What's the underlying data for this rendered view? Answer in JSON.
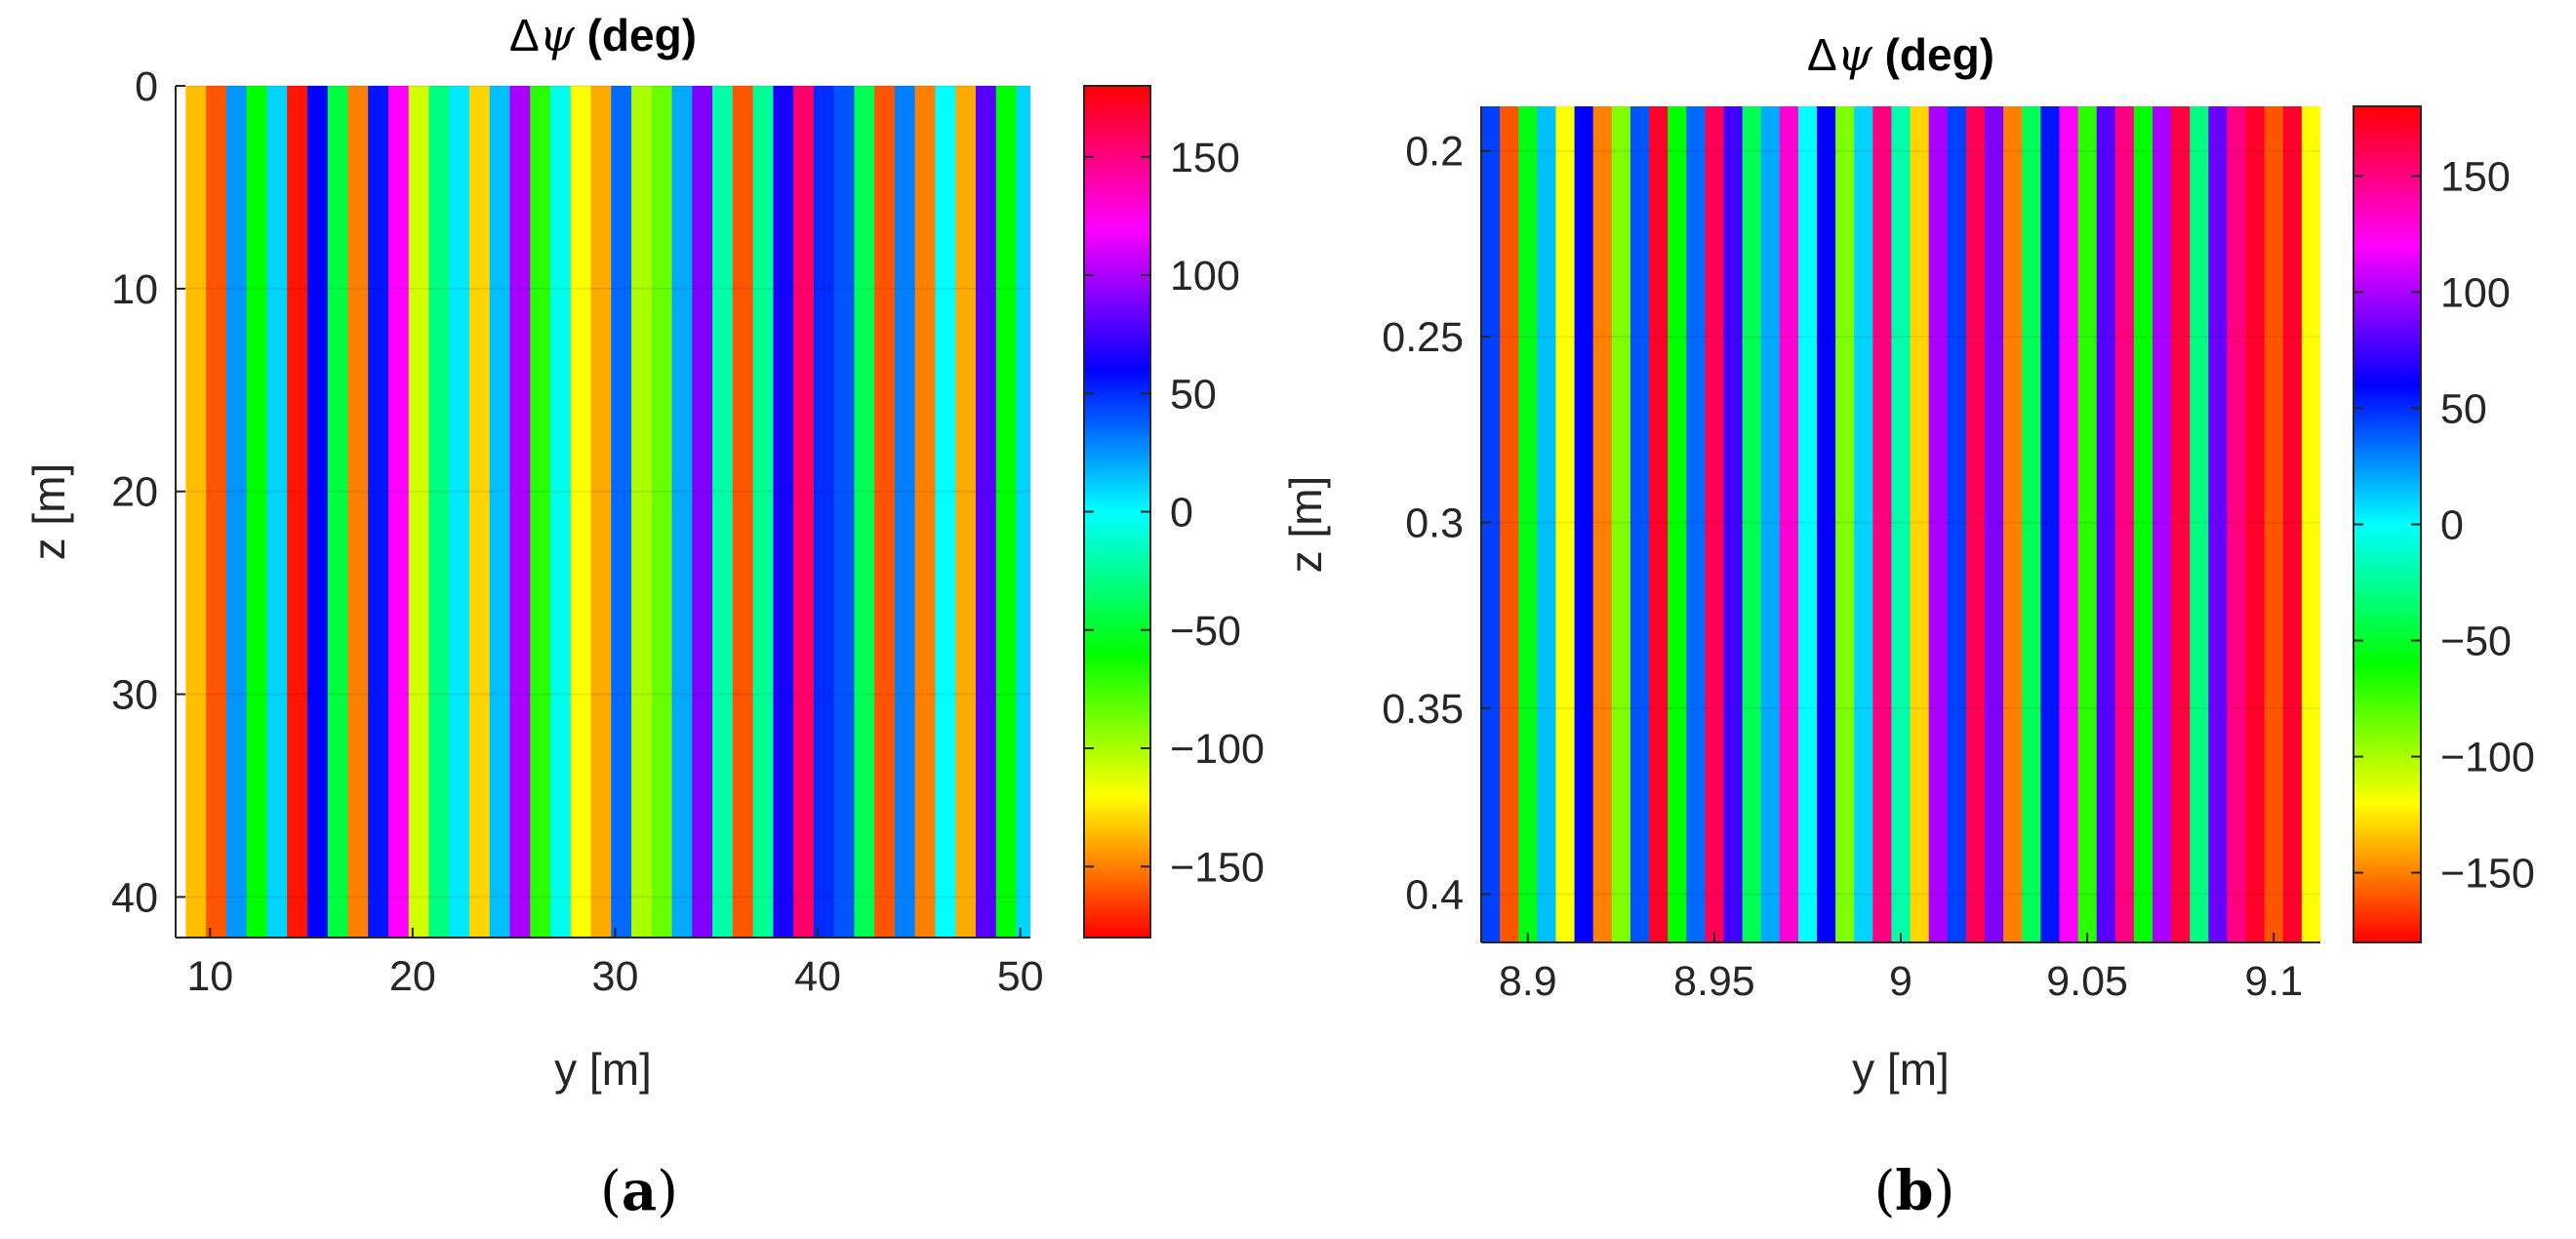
{
  "chart_data": [
    {
      "type": "heatmap",
      "panel_label": "(a)",
      "title": "Δψ (deg)",
      "title_symbol": "Δ",
      "title_var": "ψ",
      "title_unit": " (deg)",
      "xlabel": "y [m]",
      "ylabel": "z [m]",
      "xlim": [
        8.3,
        50.5
      ],
      "ylim": [
        0,
        42
      ],
      "y_reversed": true,
      "xticks": [
        10,
        20,
        30,
        40,
        50
      ],
      "yticks": [
        0,
        10,
        20,
        30,
        40
      ],
      "colorbar": {
        "clim": [
          -180,
          180
        ],
        "ticks": [
          -150,
          -100,
          -50,
          0,
          50,
          100,
          150
        ],
        "tick_labels": [
          "−150",
          "−100",
          "−50",
          "0",
          "50",
          "100",
          "150"
        ],
        "colormap": "hsv-like"
      },
      "column_width": 1.0,
      "columns_start": 8.8,
      "column_values": [
        -135,
        -160,
        25,
        -60,
        10,
        -175,
        60,
        -45,
        -150,
        55,
        120,
        -110,
        -30,
        5,
        -130,
        15,
        100,
        -70,
        -5,
        -120,
        -140,
        35,
        -100,
        -85,
        20,
        90,
        -20,
        -160,
        -25,
        65,
        155,
        50,
        40,
        -40,
        -160,
        30,
        -150,
        0,
        -140,
        80,
        -60,
        10
      ]
    },
    {
      "type": "heatmap",
      "panel_label": "(b)",
      "title": "Δψ (deg)",
      "title_symbol": "Δ",
      "title_var": "ψ",
      "title_unit": " (deg)",
      "xlabel": "y [m]",
      "ylabel": "z [m]",
      "xlim": [
        8.8875,
        9.1125
      ],
      "ylim": [
        0.188,
        0.413
      ],
      "y_reversed": true,
      "xticks": [
        8.9,
        8.95,
        9,
        9.05,
        9.1
      ],
      "yticks": [
        0.2,
        0.25,
        0.3,
        0.35,
        0.4
      ],
      "colorbar": {
        "clim": [
          -180,
          180
        ],
        "ticks": [
          -150,
          -100,
          -50,
          0,
          50,
          100,
          150
        ],
        "tick_labels": [
          "−150",
          "−100",
          "−50",
          "0",
          "50",
          "100",
          "150"
        ],
        "colormap": "hsv-like"
      },
      "column_width": 0.005,
      "columns_start": 8.8875,
      "column_values": [
        45,
        -160,
        -55,
        15,
        -120,
        60,
        -150,
        -90,
        40,
        170,
        -60,
        35,
        160,
        75,
        -40,
        20,
        130,
        0,
        60,
        -90,
        10,
        150,
        -20,
        -130,
        100,
        45,
        160,
        90,
        -150,
        -40,
        55,
        120,
        -70,
        80,
        150,
        -60,
        100,
        165,
        -30,
        85,
        150,
        170,
        -160,
        170,
        -120
      ]
    }
  ]
}
